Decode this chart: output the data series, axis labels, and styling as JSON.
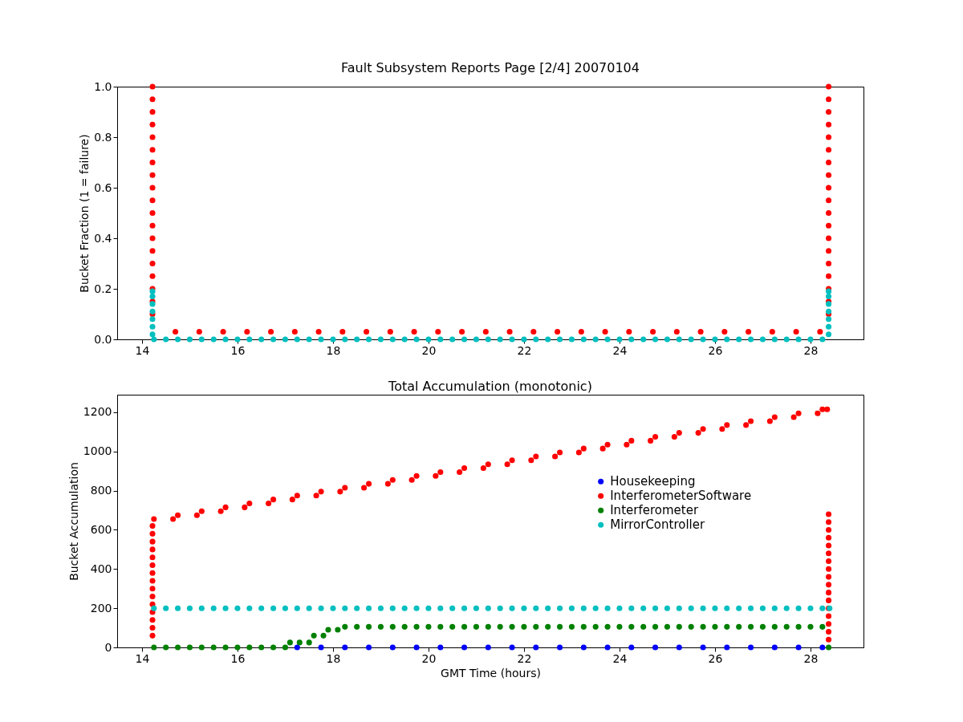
{
  "chart_data": [
    {
      "type": "scatter",
      "title": "Fault Subsystem Reports Page [2/4] 20070104",
      "ylabel": "Bucket Fraction (1 = failure)",
      "xlim": [
        13.48,
        29.11
      ],
      "xticks": [
        14,
        16,
        18,
        20,
        22,
        24,
        26,
        28
      ],
      "ylim": [
        0,
        1
      ],
      "yticks": [
        {
          "value": 0,
          "label": "0.0"
        },
        0.2,
        0.4,
        0.6,
        0.8,
        {
          "value": 1,
          "label": "1.0"
        }
      ],
      "grid": false,
      "marker": "circle",
      "series": [
        {
          "color": "#ff0000",
          "x": [
            14.22,
            14.22,
            14.22,
            14.22,
            14.22,
            14.22,
            14.22,
            14.22,
            14.22,
            14.22,
            14.22,
            14.22,
            14.22,
            14.22,
            14.22,
            14.22,
            14.22,
            14.22,
            14.22,
            14.7,
            15.2,
            15.7,
            16.2,
            16.7,
            17.2,
            17.7,
            18.2,
            18.7,
            19.2,
            19.7,
            20.2,
            20.7,
            21.2,
            21.7,
            22.2,
            22.7,
            23.2,
            23.7,
            24.2,
            24.7,
            25.2,
            25.7,
            26.2,
            26.7,
            27.2,
            27.7,
            28.2,
            28.38,
            28.38,
            28.38,
            28.38,
            28.38,
            28.38,
            28.38,
            28.38,
            28.38,
            28.38,
            28.38,
            28.38,
            28.38,
            28.38,
            28.38,
            28.38,
            28.38,
            28.38,
            28.38
          ],
          "values": [
            0.1,
            0.15,
            0.2,
            0.25,
            0.3,
            0.35,
            0.4,
            0.45,
            0.5,
            0.55,
            0.6,
            0.65,
            0.7,
            0.75,
            0.8,
            0.85,
            0.9,
            0.95,
            1.0,
            0.03,
            0.03,
            0.03,
            0.03,
            0.03,
            0.03,
            0.03,
            0.03,
            0.03,
            0.03,
            0.03,
            0.03,
            0.03,
            0.03,
            0.03,
            0.03,
            0.03,
            0.03,
            0.03,
            0.03,
            0.03,
            0.03,
            0.03,
            0.03,
            0.03,
            0.03,
            0.03,
            0.03,
            0.1,
            0.15,
            0.2,
            0.25,
            0.3,
            0.35,
            0.4,
            0.45,
            0.5,
            0.55,
            0.6,
            0.65,
            0.7,
            0.75,
            0.8,
            0.85,
            0.9,
            0.95,
            1.0
          ]
        },
        {
          "color": "#00bfbf",
          "x": [
            14.22,
            14.22,
            14.22,
            14.22,
            14.22,
            14.22,
            14.22,
            14.25,
            14.5,
            14.75,
            15,
            15.25,
            15.5,
            15.75,
            16,
            16.25,
            16.5,
            16.75,
            17,
            17.25,
            17.5,
            17.75,
            18,
            18.25,
            18.5,
            18.75,
            19,
            19.25,
            19.5,
            19.75,
            20,
            20.25,
            20.5,
            20.75,
            21,
            21.25,
            21.5,
            21.75,
            22,
            22.25,
            22.5,
            22.75,
            23,
            23.25,
            23.5,
            23.75,
            24,
            24.25,
            24.5,
            24.75,
            25,
            25.25,
            25.5,
            25.75,
            26,
            26.25,
            26.5,
            26.75,
            27,
            27.25,
            27.5,
            27.75,
            28,
            28.25,
            28.38,
            28.38,
            28.38,
            28.38,
            28.38,
            28.38,
            28.38
          ],
          "values": [
            0.02,
            0.05,
            0.08,
            0.11,
            0.14,
            0.17,
            0.19,
            0,
            0,
            0,
            0,
            0,
            0,
            0,
            0,
            0,
            0,
            0,
            0,
            0,
            0,
            0,
            0,
            0,
            0,
            0,
            0,
            0,
            0,
            0,
            0,
            0,
            0,
            0,
            0,
            0,
            0,
            0,
            0,
            0,
            0,
            0,
            0,
            0,
            0,
            0,
            0,
            0,
            0,
            0,
            0,
            0,
            0,
            0,
            0,
            0,
            0,
            0,
            0,
            0,
            0,
            0,
            0,
            0,
            0.02,
            0.05,
            0.08,
            0.11,
            0.14,
            0.17,
            0.19
          ]
        }
      ]
    },
    {
      "type": "scatter",
      "title": "Total Accumulation (monotonic)",
      "xlabel": "GMT Time (hours)",
      "ylabel": "Bucket Accumulation",
      "xlim": [
        13.48,
        29.11
      ],
      "xticks": [
        14,
        16,
        18,
        20,
        22,
        24,
        26,
        28
      ],
      "ylim": [
        0,
        1290
      ],
      "yticks": [
        0,
        200,
        400,
        600,
        800,
        1000,
        1200
      ],
      "grid": false,
      "marker": "circle",
      "legend": "right",
      "series": [
        {
          "name": "Housekeeping",
          "color": "#0000ff",
          "x": [
            17.25,
            17.75,
            18.25,
            18.75,
            19.25,
            19.75,
            20.25,
            20.75,
            21.25,
            21.75,
            22.25,
            22.75,
            23.25,
            23.75,
            24.25,
            24.75,
            25.25,
            25.75,
            26.25,
            26.75,
            27.25,
            27.75,
            28.25
          ],
          "values": [
            0,
            0,
            0,
            0,
            0,
            0,
            0,
            0,
            0,
            0,
            0,
            0,
            0,
            0,
            0,
            0,
            0,
            0,
            0,
            0,
            0,
            0,
            0
          ]
        },
        {
          "name": "InterferometerSoftware",
          "color": "#ff0000",
          "x": [
            14.22,
            14.22,
            14.22,
            14.22,
            14.22,
            14.22,
            14.22,
            14.22,
            14.22,
            14.22,
            14.22,
            14.22,
            14.22,
            14.22,
            14.22,
            14.25,
            14.65,
            14.75,
            15.15,
            15.25,
            15.65,
            15.75,
            16.15,
            16.25,
            16.65,
            16.75,
            17.15,
            17.25,
            17.65,
            17.75,
            18.15,
            18.25,
            18.65,
            18.75,
            19.15,
            19.25,
            19.65,
            19.75,
            20.15,
            20.25,
            20.65,
            20.75,
            21.15,
            21.25,
            21.65,
            21.75,
            22.15,
            22.25,
            22.65,
            22.75,
            23.15,
            23.25,
            23.65,
            23.75,
            24.15,
            24.25,
            24.65,
            24.75,
            25.15,
            25.25,
            25.65,
            25.75,
            26.15,
            26.25,
            26.65,
            26.75,
            27.15,
            27.25,
            27.65,
            27.75,
            28.15,
            28.25,
            28.35,
            28.38,
            28.38,
            28.38,
            28.38,
            28.38,
            28.38,
            28.38,
            28.38,
            28.38,
            28.38,
            28.38,
            28.38,
            28.38,
            28.38,
            28.38,
            28.38,
            28.38
          ],
          "values": [
            60,
            100,
            140,
            180,
            220,
            260,
            300,
            340,
            380,
            420,
            460,
            500,
            540,
            580,
            620,
            655,
            655,
            675,
            675,
            695,
            695,
            715,
            715,
            735,
            735,
            755,
            755,
            775,
            775,
            795,
            795,
            815,
            815,
            835,
            835,
            855,
            855,
            875,
            875,
            895,
            895,
            915,
            915,
            935,
            935,
            955,
            955,
            975,
            975,
            995,
            995,
            1015,
            1015,
            1035,
            1035,
            1055,
            1055,
            1075,
            1075,
            1095,
            1095,
            1115,
            1115,
            1135,
            1135,
            1155,
            1155,
            1175,
            1175,
            1195,
            1195,
            1215,
            1215,
            40,
            80,
            120,
            160,
            200,
            240,
            280,
            320,
            360,
            400,
            440,
            480,
            520,
            560,
            600,
            640,
            680
          ]
        },
        {
          "name": "Interferometer",
          "color": "#008000",
          "x": [
            14.25,
            14.5,
            14.75,
            15,
            15.25,
            15.5,
            15.75,
            16,
            16.25,
            16.5,
            16.75,
            17,
            17.1,
            17.3,
            17.5,
            17.6,
            17.8,
            17.9,
            18.1,
            18.25,
            18.5,
            18.75,
            19,
            19.25,
            19.5,
            19.75,
            20,
            20.25,
            20.5,
            20.75,
            21,
            21.25,
            21.5,
            21.75,
            22,
            22.25,
            22.5,
            22.75,
            23,
            23.25,
            23.5,
            23.75,
            24,
            24.25,
            24.5,
            24.75,
            25,
            25.25,
            25.5,
            25.75,
            26,
            26.25,
            26.5,
            26.75,
            27,
            27.25,
            27.5,
            27.75,
            28,
            28.25,
            28.38
          ],
          "values": [
            0,
            0,
            0,
            0,
            0,
            0,
            0,
            0,
            0,
            0,
            0,
            0,
            25,
            25,
            25,
            60,
            60,
            90,
            90,
            105,
            105,
            105,
            105,
            105,
            105,
            105,
            105,
            105,
            105,
            105,
            105,
            105,
            105,
            105,
            105,
            105,
            105,
            105,
            105,
            105,
            105,
            105,
            105,
            105,
            105,
            105,
            105,
            105,
            105,
            105,
            105,
            105,
            105,
            105,
            105,
            105,
            105,
            105,
            105,
            105,
            0
          ]
        },
        {
          "name": "MirrorController",
          "color": "#00bfbf",
          "x": [
            14.25,
            14.5,
            14.75,
            15,
            15.25,
            15.5,
            15.75,
            16,
            16.25,
            16.5,
            16.75,
            17,
            17.25,
            17.5,
            17.75,
            18,
            18.25,
            18.5,
            18.75,
            19,
            19.25,
            19.5,
            19.75,
            20,
            20.25,
            20.5,
            20.75,
            21,
            21.25,
            21.5,
            21.75,
            22,
            22.25,
            22.5,
            22.75,
            23,
            23.25,
            23.5,
            23.75,
            24,
            24.25,
            24.5,
            24.75,
            25,
            25.25,
            25.5,
            25.75,
            26,
            26.25,
            26.5,
            26.75,
            27,
            27.25,
            27.5,
            27.75,
            28,
            28.25,
            28.4
          ],
          "values": [
            200,
            200,
            200,
            200,
            200,
            200,
            200,
            200,
            200,
            200,
            200,
            200,
            200,
            200,
            200,
            200,
            200,
            200,
            200,
            200,
            200,
            200,
            200,
            200,
            200,
            200,
            200,
            200,
            200,
            200,
            200,
            200,
            200,
            200,
            200,
            200,
            200,
            200,
            200,
            200,
            200,
            200,
            200,
            200,
            200,
            200,
            200,
            200,
            200,
            200,
            200,
            200,
            200,
            200,
            200,
            200,
            200,
            200
          ]
        }
      ]
    }
  ]
}
